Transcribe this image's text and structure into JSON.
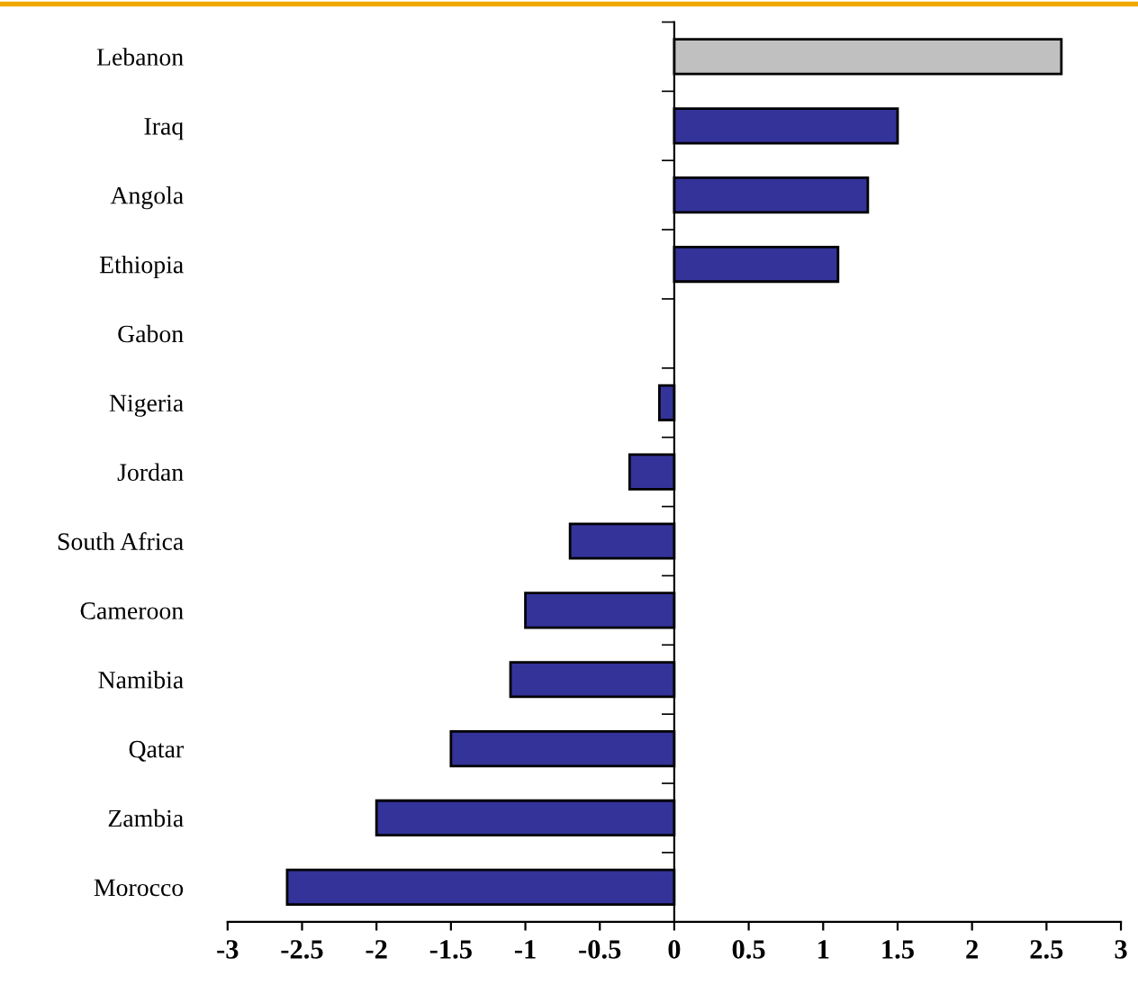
{
  "chart_data": {
    "type": "bar",
    "orientation": "horizontal",
    "categories": [
      "Lebanon",
      "Iraq",
      "Angola",
      "Ethiopia",
      "Gabon",
      "Nigeria",
      "Jordan",
      "South Africa",
      "Cameroon",
      "Namibia",
      "Qatar",
      "Zambia",
      "Morocco"
    ],
    "values": [
      2.6,
      1.5,
      1.3,
      1.1,
      0,
      -0.1,
      -0.3,
      -0.7,
      -1.0,
      -1.1,
      -1.5,
      -2.0,
      -2.6
    ],
    "colors": [
      "#c0c0c0",
      "#333399",
      "#333399",
      "#333399",
      "#333399",
      "#333399",
      "#333399",
      "#333399",
      "#333399",
      "#333399",
      "#333399",
      "#333399",
      "#333399"
    ],
    "xlim": [
      -3,
      3
    ],
    "xticks": [
      -3,
      -2.5,
      -2,
      -1.5,
      -1,
      -0.5,
      0,
      0.5,
      1,
      1.5,
      2,
      2.5,
      3
    ]
  }
}
